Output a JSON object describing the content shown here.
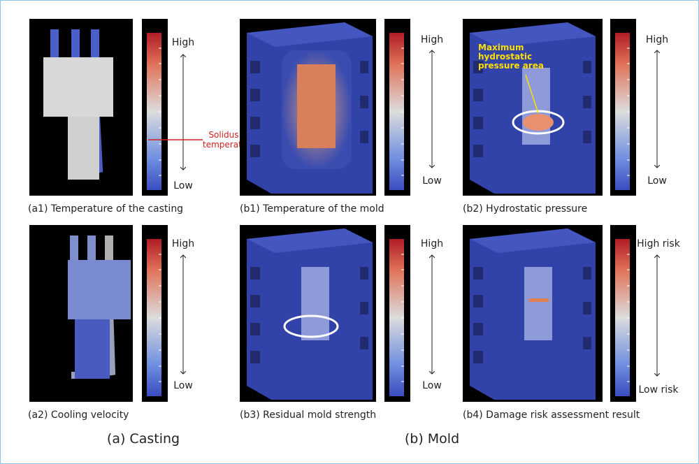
{
  "panels": [
    {
      "caption": "(a1) Temperature of the casting",
      "high": "High",
      "low": "Low",
      "annotation": "Solidus temperature"
    },
    {
      "caption": "(b1) Temperature of the mold",
      "high": "High",
      "low": "Low"
    },
    {
      "caption": "(b2) Hydrostatic pressure",
      "high": "High",
      "low": "Low",
      "annotation": "Maximum hydrostatic pressure area"
    },
    {
      "caption": "(a2) Cooling velocity",
      "high": "High",
      "low": "Low"
    },
    {
      "caption": "(b3) Residual mold strength",
      "high": "High",
      "low": "Low"
    },
    {
      "caption": "(b4) Damage risk assessment result",
      "high": "High risk",
      "low": "Low risk"
    }
  ],
  "groups": [
    "(a) Casting",
    "(b) Mold"
  ]
}
